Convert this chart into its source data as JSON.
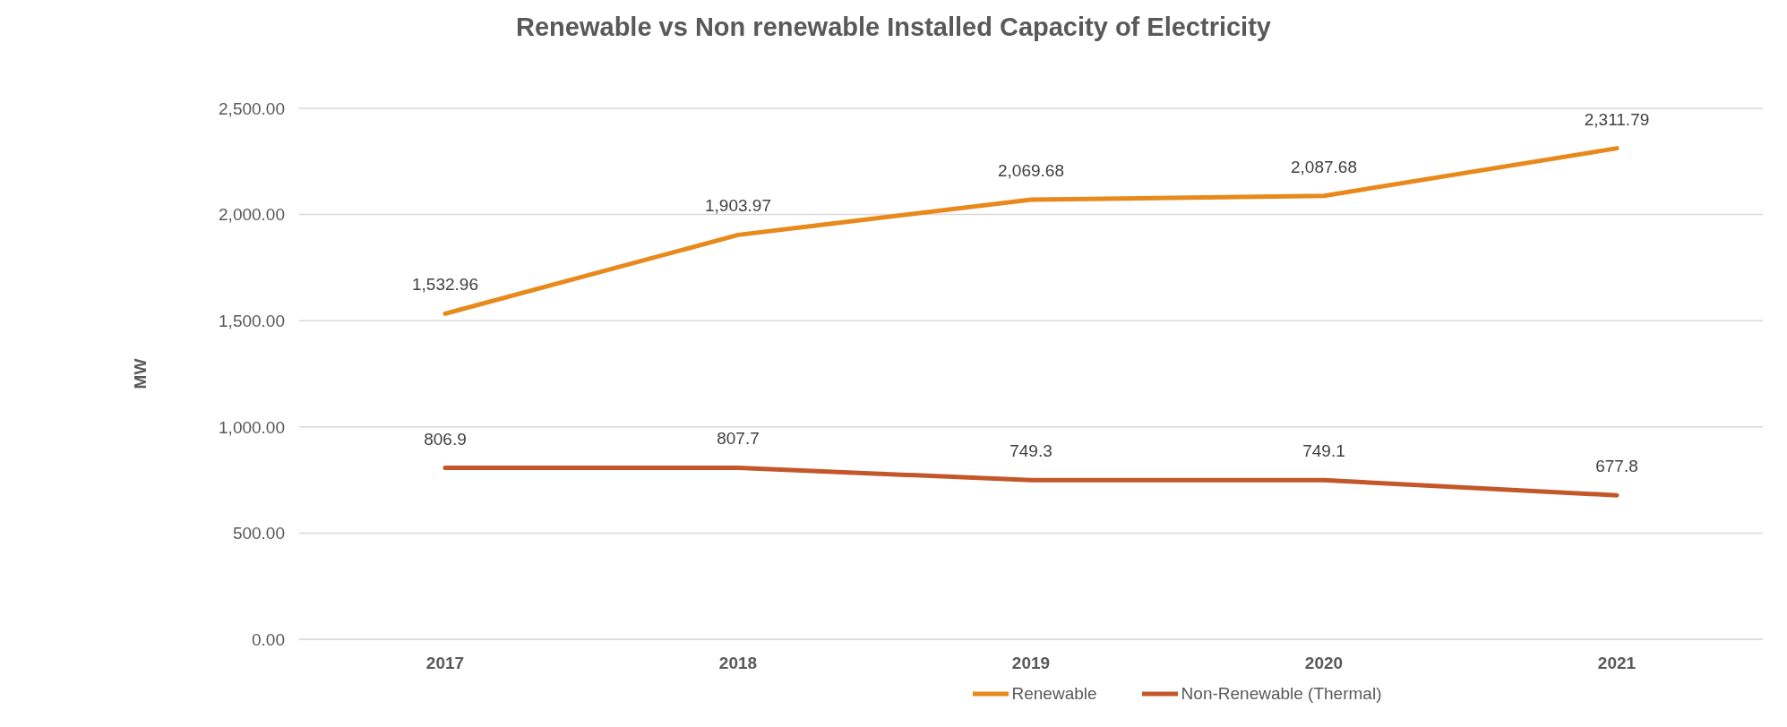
{
  "chart_data": {
    "type": "line",
    "title": "Renewable vs Non renewable Installed Capacity of Electricity",
    "ylabel": "MW",
    "categories": [
      "2017",
      "2018",
      "2019",
      "2020",
      "2021"
    ],
    "series": [
      {
        "name": "Renewable",
        "color": "#e8891b",
        "values": [
          1532.96,
          1903.97,
          2069.68,
          2087.68,
          2311.79
        ],
        "value_labels": [
          "1,532.96",
          "1,903.97",
          "2,069.68",
          "2,087.68",
          "2,311.79"
        ]
      },
      {
        "name": "Non-Renewable (Thermal)",
        "color": "#c4572a",
        "values": [
          806.9,
          807.7,
          749.3,
          749.1,
          677.8
        ],
        "value_labels": [
          "806.9",
          "807.7",
          "749.3",
          "749.1",
          "677.8"
        ]
      }
    ],
    "ylim": [
      0,
      2500
    ],
    "yticks": [
      {
        "value": 0,
        "label": "0.00"
      },
      {
        "value": 500,
        "label": "500.00"
      },
      {
        "value": 1000,
        "label": "1,000.00"
      },
      {
        "value": 1500,
        "label": "1,500.00"
      },
      {
        "value": 2000,
        "label": "2,000.00"
      },
      {
        "value": 2500,
        "label": "2,500.00"
      }
    ],
    "grid": "y",
    "legend": "bottom",
    "marker": "none",
    "line_style": "solid"
  }
}
